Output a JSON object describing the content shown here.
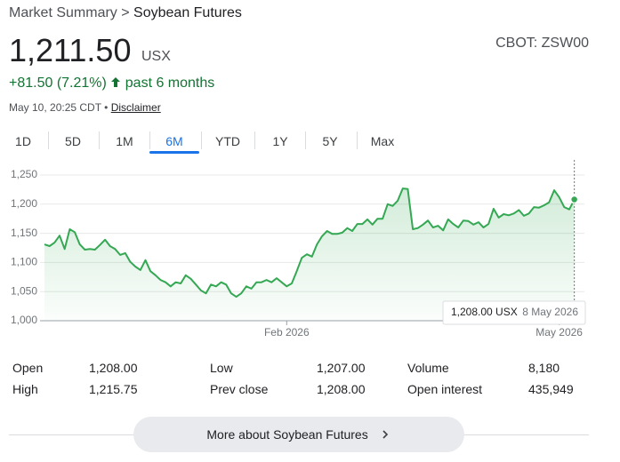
{
  "header": {
    "breadcrumb": [
      "Market Summary",
      ">",
      "Soybean Futures"
    ],
    "price": "1,211.50",
    "unit": "USX",
    "exchange": "CBOT: ZSW00",
    "change": "+81.50 (7.21%)",
    "period": "past 6 months",
    "timestamp": "May 10, 20:25 CDT",
    "bullet": "•",
    "disclaimer": "Disclaimer"
  },
  "tabs": {
    "items": [
      "1D",
      "5D",
      "1M",
      "6M",
      "YTD",
      "1Y",
      "5Y",
      "Max"
    ],
    "active": "6M"
  },
  "chart_data": {
    "type": "line",
    "color": "#34a853",
    "values": [
      1131,
      1128,
      1134,
      1146,
      1123,
      1157,
      1152,
      1131,
      1122,
      1123,
      1122,
      1130,
      1139,
      1128,
      1123,
      1113,
      1116,
      1101,
      1093,
      1087,
      1104,
      1085,
      1078,
      1070,
      1066,
      1059,
      1066,
      1064,
      1078,
      1072,
      1062,
      1052,
      1047,
      1062,
      1059,
      1066,
      1062,
      1047,
      1041,
      1047,
      1059,
      1055,
      1066,
      1066,
      1070,
      1066,
      1073,
      1066,
      1059,
      1064,
      1085,
      1108,
      1114,
      1110,
      1131,
      1145,
      1154,
      1149,
      1149,
      1151,
      1159,
      1154,
      1166,
      1166,
      1174,
      1165,
      1175,
      1175,
      1200,
      1197,
      1206,
      1227,
      1226,
      1157,
      1159,
      1165,
      1172,
      1160,
      1163,
      1155,
      1174,
      1166,
      1160,
      1172,
      1171,
      1165,
      1169,
      1160,
      1166,
      1192,
      1177,
      1183,
      1181,
      1184,
      1190,
      1180,
      1184,
      1195,
      1194,
      1198,
      1203,
      1224,
      1212,
      1195,
      1191,
      1208
    ],
    "xlim": [
      0,
      107
    ],
    "xticks": [
      {
        "value": 48,
        "label": "Feb 2026"
      },
      {
        "value": 102,
        "label": "May 2026"
      }
    ],
    "ylim": [
      1000,
      1250
    ],
    "yticks": [
      {
        "value": 1000,
        "label": "1,000"
      },
      {
        "value": 1050,
        "label": "1,050"
      },
      {
        "value": 1100,
        "label": "1,100"
      },
      {
        "value": 1150,
        "label": "1,150"
      },
      {
        "value": 1200,
        "label": "1,200"
      },
      {
        "value": 1250,
        "label": "1,250"
      }
    ],
    "grid": true,
    "tooltip": {
      "value": "1,208.00 USX",
      "date": "8 May 2026"
    }
  },
  "stats": {
    "rows": [
      [
        "Open",
        "1,208.00",
        "Low",
        "1,207.00",
        "Volume",
        "8,180"
      ],
      [
        "High",
        "1,215.75",
        "Prev close",
        "1,208.00",
        "Open interest",
        "435,949"
      ]
    ]
  },
  "footer": {
    "button": "More about Soybean Futures"
  }
}
